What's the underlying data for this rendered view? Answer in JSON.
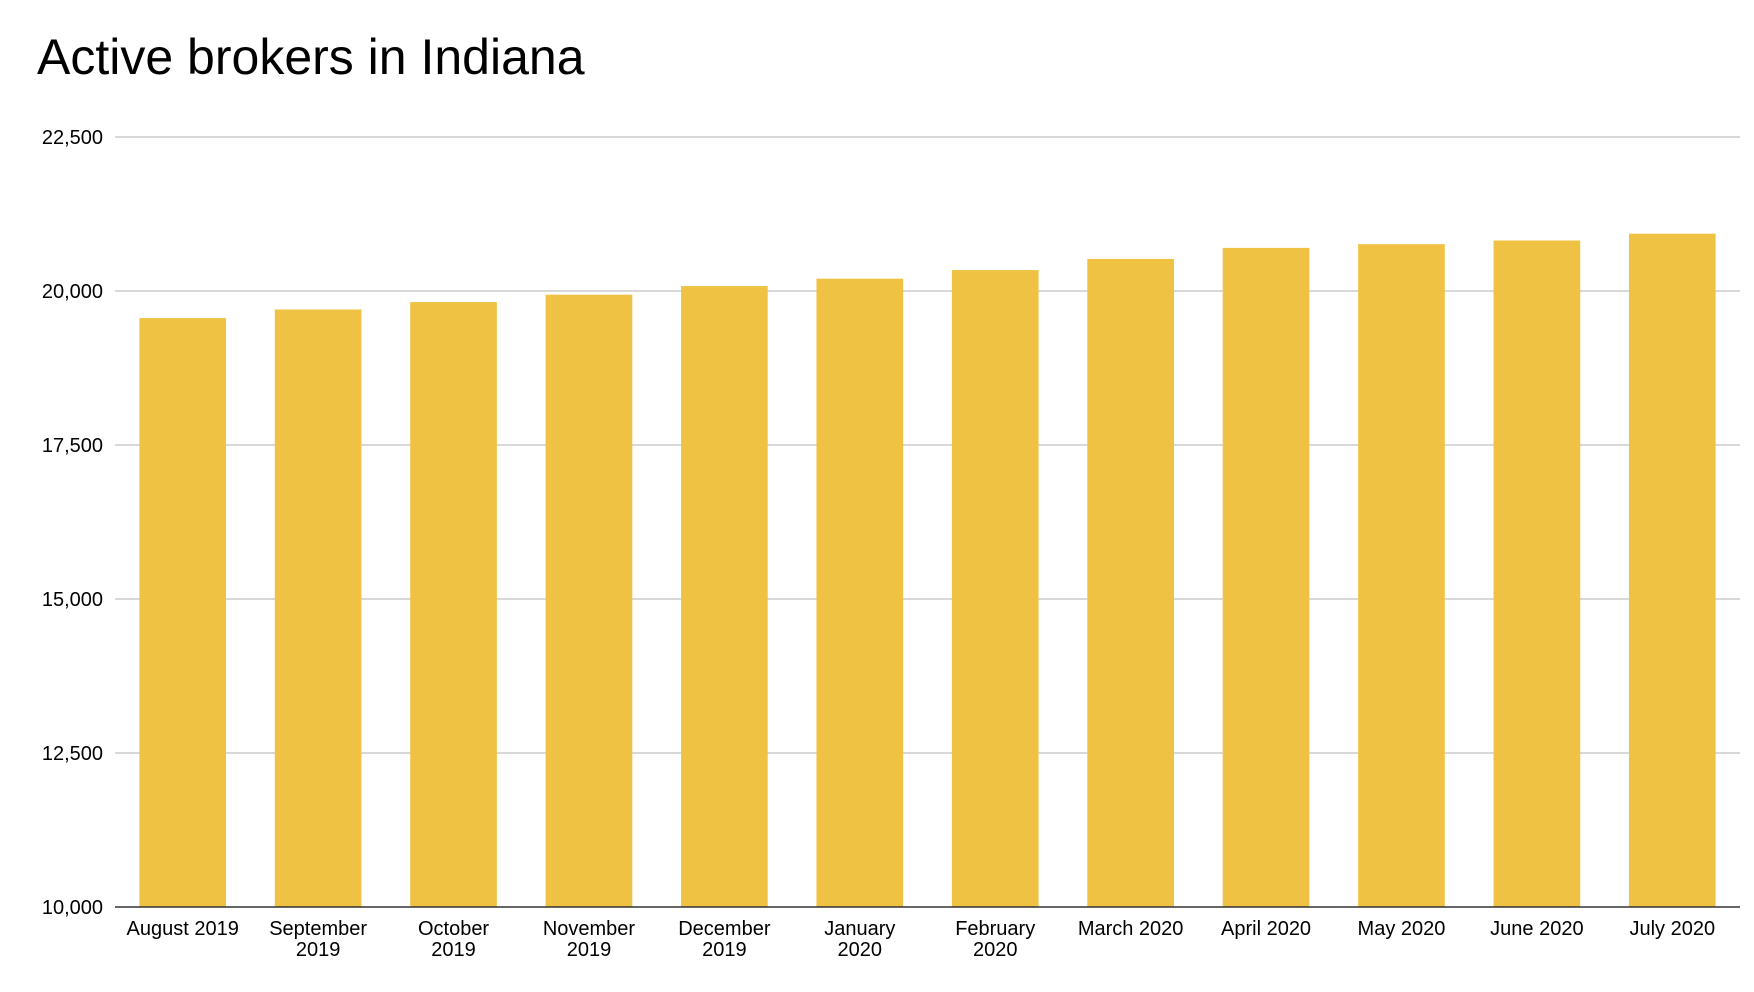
{
  "colors": {
    "bar": "#f0c243",
    "grid": "#cccccc",
    "axis": "#333333",
    "text": "#000000"
  },
  "chart_data": {
    "type": "bar",
    "title": "Active brokers in Indiana",
    "xlabel": "",
    "ylabel": "",
    "categories": [
      "August 2019",
      "September 2019",
      "October 2019",
      "November 2019",
      "December 2019",
      "January 2020",
      "February 2020",
      "March 2020",
      "April 2020",
      "May 2020",
      "June 2020",
      "July 2020"
    ],
    "category_label_lines": [
      [
        "August 2019"
      ],
      [
        "September",
        "2019"
      ],
      [
        "October",
        "2019"
      ],
      [
        "November",
        "2019"
      ],
      [
        "December",
        "2019"
      ],
      [
        "January",
        "2020"
      ],
      [
        "February",
        "2020"
      ],
      [
        "March 2020"
      ],
      [
        "April 2020"
      ],
      [
        "May 2020"
      ],
      [
        "June 2020"
      ],
      [
        "July 2020"
      ]
    ],
    "values": [
      19560,
      19700,
      19820,
      19940,
      20080,
      20200,
      20340,
      20520,
      20700,
      20760,
      20820,
      20930
    ],
    "ylim": [
      10000,
      22500
    ],
    "yticks": [
      10000,
      12500,
      15000,
      17500,
      20000,
      22500
    ],
    "ytick_labels": [
      "10,000",
      "12,500",
      "15,000",
      "17,500",
      "20,000",
      "22,500"
    ],
    "grid": true,
    "legend": "none"
  }
}
